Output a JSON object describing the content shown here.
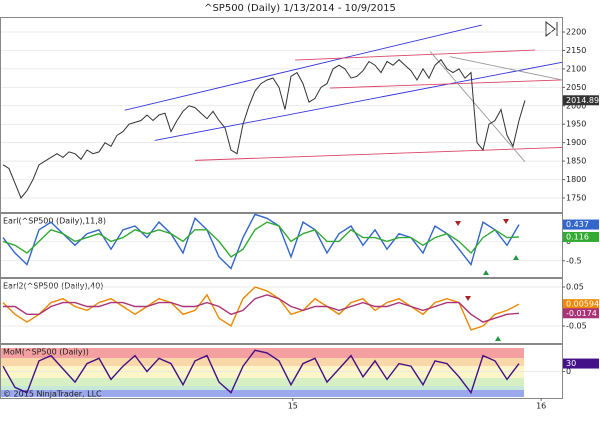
{
  "chart_data": [
    {
      "type": "line",
      "title": "^SP500 (Daily)  1/13/2014 - 10/9/2015",
      "xlim": [
        -0.5,
        93.17
      ],
      "ylim": [
        1712,
        2240.7
      ],
      "yticks": [
        1750,
        1800,
        1850,
        1900,
        1950,
        2000,
        2050,
        2100,
        2150,
        2200
      ],
      "grid": true,
      "x": [
        0,
        1,
        2,
        3,
        4,
        5,
        6,
        7,
        8,
        9,
        10,
        11,
        12,
        13,
        14,
        15,
        16,
        17,
        18,
        19,
        20,
        21,
        22,
        23,
        24,
        25,
        26,
        27,
        28,
        29,
        30,
        31,
        32,
        33,
        34,
        35,
        36,
        37,
        38,
        39,
        40,
        41,
        42,
        43,
        44,
        45,
        46,
        47,
        48,
        49,
        50,
        51,
        52,
        53,
        54,
        55,
        56,
        57,
        58,
        59,
        60,
        61,
        62,
        63,
        64,
        65,
        66,
        67,
        68,
        69,
        70,
        71,
        72,
        73,
        74,
        75,
        76,
        77,
        78,
        79,
        80,
        81,
        82,
        83,
        84,
        85,
        86,
        87
      ],
      "series": [
        {
          "color": "#333333",
          "values": [
            1840,
            1830,
            1790,
            1750,
            1770,
            1800,
            1840,
            1850,
            1860,
            1870,
            1860,
            1875,
            1870,
            1855,
            1880,
            1870,
            1875,
            1900,
            1890,
            1920,
            1930,
            1950,
            1955,
            1960,
            1975,
            1960,
            1975,
            1980,
            1930,
            1960,
            1985,
            2000,
            1995,
            1980,
            1965,
            1985,
            1960,
            1940,
            1880,
            1870,
            1950,
            2000,
            2040,
            2060,
            2070,
            2075,
            2050,
            1990,
            2080,
            2090,
            2060,
            2010,
            2020,
            2050,
            2060,
            2100,
            2110,
            2100,
            2075,
            2080,
            2095,
            2120,
            2110,
            2090,
            2120,
            2110,
            2125,
            2110,
            2095,
            2070,
            2100,
            2075,
            2110,
            2125,
            2100,
            2090,
            2100,
            2075,
            2090,
            1900,
            1880,
            1950,
            1960,
            1990,
            1920,
            1890,
            1960,
            2014.89
          ]
        }
      ],
      "trendlines": [
        {
          "color": "#3333dd",
          "x": [
            20.3,
            79.8
          ],
          "y": [
            1988,
            2219
          ]
        },
        {
          "color": "#3333dd",
          "x": [
            25.3,
            93.17
          ],
          "y": [
            1906,
            2118
          ]
        },
        {
          "color": "#dd4466",
          "x": [
            32,
            93.17
          ],
          "y": [
            1852,
            1887
          ]
        },
        {
          "color": "#dd4466",
          "x": [
            48.7,
            88.7
          ],
          "y": [
            2124,
            2151
          ]
        },
        {
          "color": "#dd4466",
          "x": [
            54.5,
            93.17
          ],
          "y": [
            2048,
            2070
          ]
        },
        {
          "color": "#999999",
          "x": [
            71.2,
            87
          ],
          "y": [
            2147,
            1848
          ]
        },
        {
          "color": "#999999",
          "x": [
            74.5,
            93.17
          ],
          "y": [
            2133,
            2070
          ]
        }
      ]
    },
    {
      "type": "line",
      "title": "Earl(^SP500 (Daily),11,8)",
      "xlim": [
        -0.5,
        93.17
      ],
      "ylim": [
        -0.92,
        0.71
      ],
      "yticks": [
        0,
        -0.5
      ],
      "grid": true,
      "x": [
        0,
        2,
        4,
        6,
        8,
        10,
        12,
        14,
        16,
        18,
        20,
        22,
        24,
        26,
        28,
        30,
        32,
        34,
        36,
        38,
        40,
        42,
        44,
        46,
        48,
        50,
        52,
        54,
        56,
        58,
        60,
        62,
        64,
        66,
        68,
        70,
        72,
        74,
        76,
        78,
        80,
        82,
        84,
        86
      ],
      "series": [
        {
          "color": "#3366cc",
          "values": [
            0.1,
            -0.3,
            -0.6,
            0.3,
            0.5,
            0.2,
            -0.1,
            0.2,
            0.3,
            -0.2,
            0.3,
            0.4,
            0.1,
            0.5,
            0.2,
            -0.3,
            0.6,
            0.3,
            -0.4,
            -0.7,
            0.1,
            0.7,
            0.6,
            0.4,
            -0.4,
            0.5,
            0.3,
            -0.3,
            0.2,
            0.4,
            -0.1,
            0.3,
            -0.2,
            0.2,
            0.1,
            -0.3,
            0.4,
            0.2,
            -0.2,
            -0.6,
            0.5,
            0.3,
            -0.1,
            0.437
          ]
        },
        {
          "color": "#33aa33",
          "values": [
            0,
            -0.1,
            -0.3,
            0,
            0.3,
            0.2,
            0,
            0.1,
            0.2,
            0,
            0.1,
            0.3,
            0.2,
            0.3,
            0.2,
            0,
            0.3,
            0.3,
            0,
            -0.4,
            -0.2,
            0.3,
            0.5,
            0.4,
            0,
            0.2,
            0.3,
            0,
            0,
            0.3,
            0.1,
            0.1,
            0,
            0.1,
            0.1,
            -0.1,
            0.1,
            0.2,
            0,
            -0.3,
            0.1,
            0.3,
            0.1,
            0.116
          ]
        }
      ]
    },
    {
      "type": "line",
      "title": "Earl2(^SP500 (Daily),40)",
      "xlim": [
        -0.5,
        93.17
      ],
      "ylim": [
        -0.0936,
        0.0705
      ],
      "yticks": [
        0.05,
        -0.05
      ],
      "grid": true,
      "x": [
        0,
        2,
        4,
        6,
        8,
        10,
        12,
        14,
        16,
        18,
        20,
        22,
        24,
        26,
        28,
        30,
        32,
        34,
        36,
        38,
        40,
        42,
        44,
        46,
        48,
        50,
        52,
        54,
        56,
        58,
        60,
        62,
        64,
        66,
        68,
        70,
        72,
        74,
        76,
        78,
        80,
        82,
        84,
        86
      ],
      "series": [
        {
          "color": "#ee8800",
          "values": [
            0.01,
            -0.02,
            -0.04,
            -0.02,
            0.01,
            0.02,
            0,
            -0.01,
            0.01,
            0.02,
            0,
            -0.02,
            0,
            0.02,
            0.01,
            -0.02,
            -0.01,
            0.03,
            -0.03,
            -0.05,
            0.02,
            0.05,
            0.04,
            0.02,
            -0.02,
            -0.01,
            0.02,
            0,
            -0.02,
            0.01,
            0.02,
            -0.01,
            0.01,
            0.02,
            0,
            -0.02,
            0.01,
            0.02,
            0.01,
            -0.06,
            -0.05,
            -0.02,
            -0.01,
            0.00594
          ]
        },
        {
          "color": "#aa3377",
          "values": [
            0,
            0,
            -0.02,
            -0.02,
            0,
            0.01,
            0.01,
            0,
            0,
            0.01,
            0.01,
            0,
            0,
            0.01,
            0.01,
            0,
            0,
            0.01,
            0,
            -0.02,
            -0.01,
            0.02,
            0.03,
            0.02,
            0,
            -0.01,
            0,
            0,
            -0.01,
            0,
            0.01,
            0,
            0,
            0.01,
            0,
            -0.01,
            0,
            0.01,
            0.01,
            -0.02,
            -0.04,
            -0.03,
            -0.02,
            -0.0174
          ]
        }
      ]
    },
    {
      "type": "line",
      "title": "MoM(^SP500 (Daily))",
      "annotation": "© 2015 NinjaTrader, LLC",
      "xlim": [
        -0.5,
        93.17
      ],
      "ylim": [
        -100,
        100
      ],
      "yticks": [
        0
      ],
      "grid": true,
      "xticks": [
        {
          "value": 48.3,
          "label": "15"
        },
        {
          "value": 89.7,
          "label": "16"
        }
      ],
      "x": [
        0,
        2,
        4,
        6,
        8,
        10,
        12,
        14,
        16,
        18,
        20,
        22,
        24,
        26,
        28,
        30,
        32,
        34,
        36,
        38,
        40,
        42,
        44,
        46,
        48,
        50,
        52,
        54,
        56,
        58,
        60,
        62,
        64,
        66,
        68,
        70,
        72,
        74,
        76,
        78,
        80,
        82,
        84,
        86
      ],
      "series": [
        {
          "color": "#441188",
          "values": [
            20,
            -60,
            -80,
            40,
            60,
            10,
            -40,
            30,
            50,
            -30,
            20,
            60,
            0,
            50,
            30,
            -50,
            40,
            60,
            -40,
            -80,
            20,
            80,
            70,
            40,
            -50,
            30,
            50,
            -40,
            10,
            60,
            -20,
            40,
            -30,
            30,
            20,
            -50,
            40,
            30,
            -20,
            -80,
            60,
            40,
            -30,
            30
          ]
        }
      ]
    }
  ]
}
